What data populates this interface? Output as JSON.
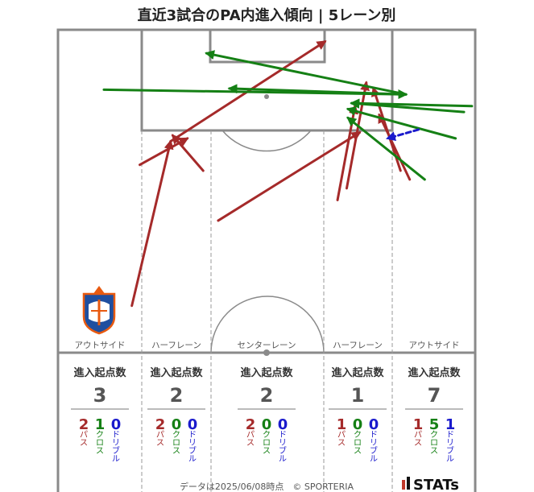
{
  "title": "直近3試合のPA内進入傾向 | 5レーン別",
  "colors": {
    "pass": "#a52a2a",
    "cross": "#158015",
    "dribble": "#1a1acc",
    "pitch_line": "#8a8a8a",
    "lane_line": "#999999",
    "total_num": "#555555"
  },
  "chart_data": {
    "type": "pitch-arrows",
    "lanes": [
      {
        "label": "アウトサイド",
        "stat_label": "進入起点数",
        "total": "3",
        "pass": "2",
        "cross": "1",
        "dribble": "0"
      },
      {
        "label": "ハーフレーン",
        "stat_label": "進入起点数",
        "total": "2",
        "pass": "2",
        "cross": "0",
        "dribble": "0"
      },
      {
        "label": "センターレーン",
        "stat_label": "進入起点数",
        "total": "2",
        "pass": "2",
        "cross": "0",
        "dribble": "0"
      },
      {
        "label": "ハーフレーン",
        "stat_label": "進入起点数",
        "total": "1",
        "pass": "1",
        "cross": "0",
        "dribble": "0"
      },
      {
        "label": "アウトサイド",
        "stat_label": "進入起点数",
        "total": "7",
        "pass": "1",
        "cross": "5",
        "dribble": "1"
      }
    ],
    "type_labels": {
      "pass": "パス",
      "cross": "クロス",
      "dribble": "ドリブル"
    },
    "arrows": [
      {
        "type": "pass",
        "from": [
          17.7,
          58.0
        ],
        "to": [
          27.0,
          86.0
        ]
      },
      {
        "type": "pass",
        "from": [
          19.6,
          82.0
        ],
        "to": [
          31.0,
          86.5
        ]
      },
      {
        "type": "pass",
        "from": [
          34.8,
          81.0
        ],
        "to": [
          27.5,
          87.0
        ]
      },
      {
        "type": "pass",
        "from": [
          27.0,
          86.0
        ],
        "to": [
          64.0,
          103.0
        ]
      },
      {
        "type": "pass",
        "from": [
          38.4,
          72.5
        ],
        "to": [
          72.3,
          87.5
        ]
      },
      {
        "type": "pass",
        "from": [
          67.0,
          76.0
        ],
        "to": [
          71.2,
          92.0
        ]
      },
      {
        "type": "pass",
        "from": [
          69.2,
          78.0
        ],
        "to": [
          73.9,
          96.0
        ]
      },
      {
        "type": "pass",
        "from": [
          82.1,
          81.0
        ],
        "to": [
          75.6,
          95.0
        ]
      },
      {
        "type": "pass",
        "from": [
          84.3,
          79.5
        ],
        "to": [
          77.0,
          90.5
        ]
      },
      {
        "type": "cross",
        "from": [
          11.0,
          94.8
        ],
        "to": [
          83.4,
          94.0
        ]
      },
      {
        "type": "cross",
        "from": [
          83.4,
          94.0
        ],
        "to": [
          41.1,
          95.0
        ]
      },
      {
        "type": "cross",
        "from": [
          83.4,
          94.0
        ],
        "to": [
          35.6,
          101.0
        ]
      },
      {
        "type": "cross",
        "from": [
          97.3,
          91.0
        ],
        "to": [
          70.4,
          92.5
        ]
      },
      {
        "type": "cross",
        "from": [
          99.2,
          92.0
        ],
        "to": [
          70.4,
          92.5
        ]
      },
      {
        "type": "cross",
        "from": [
          95.3,
          86.5
        ],
        "to": [
          69.5,
          91.5
        ]
      },
      {
        "type": "cross",
        "from": [
          87.9,
          79.5
        ],
        "to": [
          69.5,
          90.0
        ]
      },
      {
        "type": "dribble",
        "from": [
          86.4,
          88.0
        ],
        "to": [
          79.0,
          86.5
        ]
      }
    ]
  },
  "footer": {
    "note": "データは2025/06/08時点　© SPORTERIA",
    "brand": "STATs"
  }
}
